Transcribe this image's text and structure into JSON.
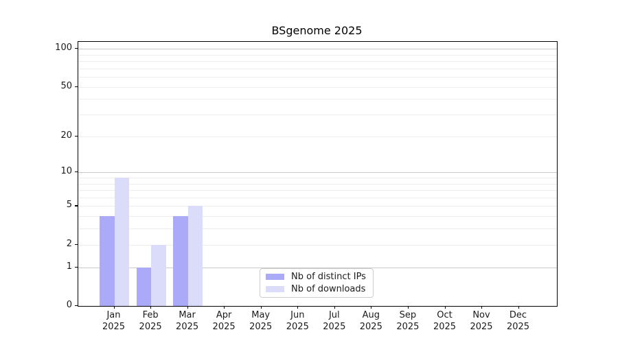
{
  "chart_data": {
    "type": "bar",
    "title": "BSgenome 2025",
    "categories": [
      "Jan",
      "Feb",
      "Mar",
      "Apr",
      "May",
      "Jun",
      "Jul",
      "Aug",
      "Sep",
      "Oct",
      "Nov",
      "Dec"
    ],
    "year_label": "2025",
    "series": [
      {
        "name": "Nb of distinct IPs",
        "color": "#aaaaf8",
        "values": [
          4,
          1,
          4,
          0,
          0,
          0,
          0,
          0,
          0,
          0,
          0,
          0
        ]
      },
      {
        "name": "Nb of downloads",
        "color": "#dbdbfa",
        "values": [
          9,
          2,
          5,
          0,
          0,
          0,
          0,
          0,
          0,
          0,
          0,
          0
        ]
      }
    ],
    "y_axis": {
      "scale": "log1p",
      "tick_values": [
        0,
        1,
        2,
        5,
        10,
        20,
        50,
        100
      ],
      "major_gridlines": [
        1,
        10,
        100
      ],
      "minor_gridlines": [
        2,
        3,
        4,
        5,
        6,
        7,
        8,
        9,
        20,
        30,
        40,
        50,
        60,
        70,
        80,
        90
      ],
      "max_value": 113
    },
    "xlabel": "",
    "ylabel": "",
    "grid": true,
    "legend_position": "bottom-center"
  },
  "colors": {
    "major_grid": "#c8c8c8",
    "minor_grid": "#ededed",
    "spine": "#000000",
    "text": "#1a1a1a",
    "background": "#ffffff",
    "legend_border": "#cccccc"
  }
}
